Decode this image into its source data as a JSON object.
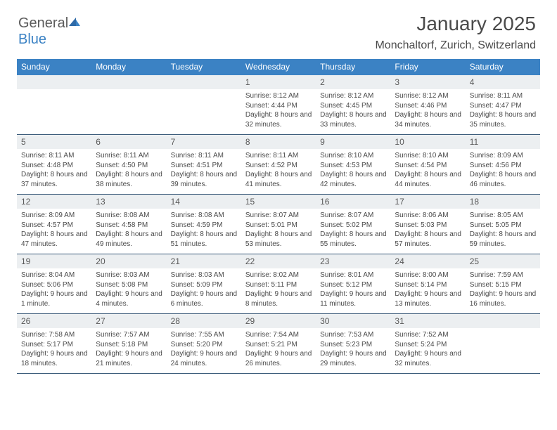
{
  "logo": {
    "word1": "General",
    "word2": "Blue"
  },
  "title": "January 2025",
  "subtitle": "Monchaltorf, Zurich, Switzerland",
  "colors": {
    "header_bg": "#3b82c4",
    "header_fg": "#ffffff",
    "daynum_bg": "#eceff1",
    "rule": "#3b5b7a",
    "text": "#4a4a4a"
  },
  "daysOfWeek": [
    "Sunday",
    "Monday",
    "Tuesday",
    "Wednesday",
    "Thursday",
    "Friday",
    "Saturday"
  ],
  "weeks": [
    [
      {
        "blank": true
      },
      {
        "blank": true
      },
      {
        "blank": true
      },
      {
        "n": "1",
        "sunrise": "8:12 AM",
        "sunset": "4:44 PM",
        "dayh": "8",
        "daym": "32 minutes"
      },
      {
        "n": "2",
        "sunrise": "8:12 AM",
        "sunset": "4:45 PM",
        "dayh": "8",
        "daym": "33 minutes"
      },
      {
        "n": "3",
        "sunrise": "8:12 AM",
        "sunset": "4:46 PM",
        "dayh": "8",
        "daym": "34 minutes"
      },
      {
        "n": "4",
        "sunrise": "8:11 AM",
        "sunset": "4:47 PM",
        "dayh": "8",
        "daym": "35 minutes"
      }
    ],
    [
      {
        "n": "5",
        "sunrise": "8:11 AM",
        "sunset": "4:48 PM",
        "dayh": "8",
        "daym": "37 minutes"
      },
      {
        "n": "6",
        "sunrise": "8:11 AM",
        "sunset": "4:50 PM",
        "dayh": "8",
        "daym": "38 minutes"
      },
      {
        "n": "7",
        "sunrise": "8:11 AM",
        "sunset": "4:51 PM",
        "dayh": "8",
        "daym": "39 minutes"
      },
      {
        "n": "8",
        "sunrise": "8:11 AM",
        "sunset": "4:52 PM",
        "dayh": "8",
        "daym": "41 minutes"
      },
      {
        "n": "9",
        "sunrise": "8:10 AM",
        "sunset": "4:53 PM",
        "dayh": "8",
        "daym": "42 minutes"
      },
      {
        "n": "10",
        "sunrise": "8:10 AM",
        "sunset": "4:54 PM",
        "dayh": "8",
        "daym": "44 minutes"
      },
      {
        "n": "11",
        "sunrise": "8:09 AM",
        "sunset": "4:56 PM",
        "dayh": "8",
        "daym": "46 minutes"
      }
    ],
    [
      {
        "n": "12",
        "sunrise": "8:09 AM",
        "sunset": "4:57 PM",
        "dayh": "8",
        "daym": "47 minutes"
      },
      {
        "n": "13",
        "sunrise": "8:08 AM",
        "sunset": "4:58 PM",
        "dayh": "8",
        "daym": "49 minutes"
      },
      {
        "n": "14",
        "sunrise": "8:08 AM",
        "sunset": "4:59 PM",
        "dayh": "8",
        "daym": "51 minutes"
      },
      {
        "n": "15",
        "sunrise": "8:07 AM",
        "sunset": "5:01 PM",
        "dayh": "8",
        "daym": "53 minutes"
      },
      {
        "n": "16",
        "sunrise": "8:07 AM",
        "sunset": "5:02 PM",
        "dayh": "8",
        "daym": "55 minutes"
      },
      {
        "n": "17",
        "sunrise": "8:06 AM",
        "sunset": "5:03 PM",
        "dayh": "8",
        "daym": "57 minutes"
      },
      {
        "n": "18",
        "sunrise": "8:05 AM",
        "sunset": "5:05 PM",
        "dayh": "8",
        "daym": "59 minutes"
      }
    ],
    [
      {
        "n": "19",
        "sunrise": "8:04 AM",
        "sunset": "5:06 PM",
        "dayh": "9",
        "daym": "1 minute"
      },
      {
        "n": "20",
        "sunrise": "8:03 AM",
        "sunset": "5:08 PM",
        "dayh": "9",
        "daym": "4 minutes"
      },
      {
        "n": "21",
        "sunrise": "8:03 AM",
        "sunset": "5:09 PM",
        "dayh": "9",
        "daym": "6 minutes"
      },
      {
        "n": "22",
        "sunrise": "8:02 AM",
        "sunset": "5:11 PM",
        "dayh": "9",
        "daym": "8 minutes"
      },
      {
        "n": "23",
        "sunrise": "8:01 AM",
        "sunset": "5:12 PM",
        "dayh": "9",
        "daym": "11 minutes"
      },
      {
        "n": "24",
        "sunrise": "8:00 AM",
        "sunset": "5:14 PM",
        "dayh": "9",
        "daym": "13 minutes"
      },
      {
        "n": "25",
        "sunrise": "7:59 AM",
        "sunset": "5:15 PM",
        "dayh": "9",
        "daym": "16 minutes"
      }
    ],
    [
      {
        "n": "26",
        "sunrise": "7:58 AM",
        "sunset": "5:17 PM",
        "dayh": "9",
        "daym": "18 minutes"
      },
      {
        "n": "27",
        "sunrise": "7:57 AM",
        "sunset": "5:18 PM",
        "dayh": "9",
        "daym": "21 minutes"
      },
      {
        "n": "28",
        "sunrise": "7:55 AM",
        "sunset": "5:20 PM",
        "dayh": "9",
        "daym": "24 minutes"
      },
      {
        "n": "29",
        "sunrise": "7:54 AM",
        "sunset": "5:21 PM",
        "dayh": "9",
        "daym": "26 minutes"
      },
      {
        "n": "30",
        "sunrise": "7:53 AM",
        "sunset": "5:23 PM",
        "dayh": "9",
        "daym": "29 minutes"
      },
      {
        "n": "31",
        "sunrise": "7:52 AM",
        "sunset": "5:24 PM",
        "dayh": "9",
        "daym": "32 minutes"
      },
      {
        "blank": true
      }
    ]
  ]
}
